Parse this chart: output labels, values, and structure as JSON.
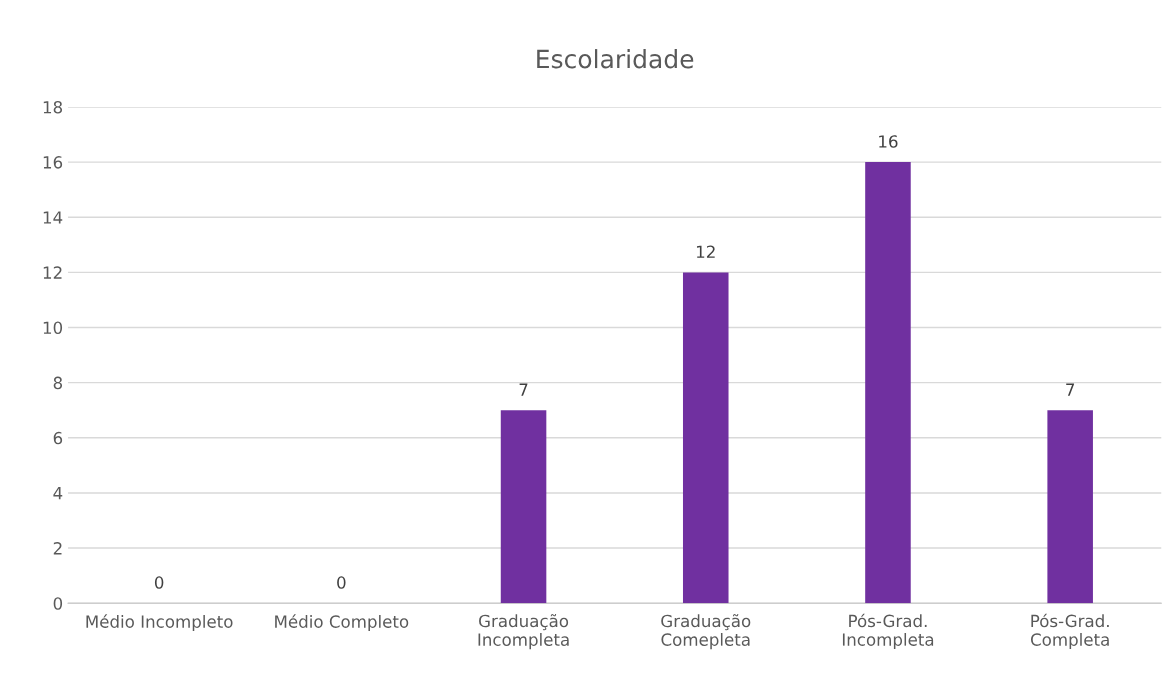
{
  "chart_data": {
    "type": "bar",
    "title": "Escolaridade",
    "categories": [
      "Médio Incompleto",
      "Médio Completo",
      "Graduação\nIncompleta",
      "Graduação\nComepleta",
      "Pós-Grad.\nIncompleta",
      "Pós-Grad.\nCompleta"
    ],
    "values": [
      0,
      0,
      7,
      12,
      16,
      7
    ],
    "color": "#7030a0",
    "ylim": [
      0,
      18
    ],
    "yticks": [
      0,
      2,
      4,
      6,
      8,
      10,
      12,
      14,
      16,
      18
    ],
    "grid": "y",
    "data_labels": true
  }
}
